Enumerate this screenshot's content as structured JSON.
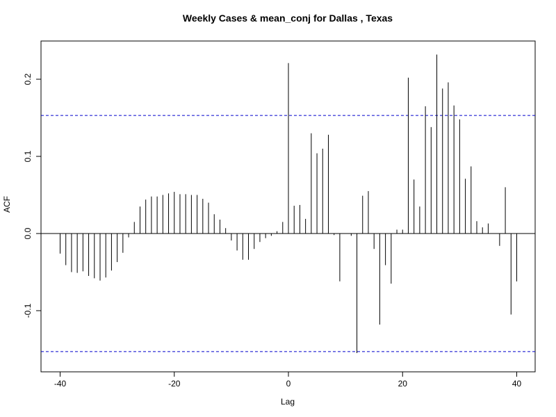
{
  "chart_data": {
    "type": "bar",
    "title": "Weekly Cases & mean_conj for Dallas , Texas",
    "xlabel": "Lag",
    "ylabel": "ACF",
    "xlim": [
      -40,
      40
    ],
    "ylim": [
      -0.155,
      0.232
    ],
    "x_ticks": [
      -40,
      -20,
      0,
      20,
      40
    ],
    "y_ticks": [
      -0.1,
      0.0,
      0.1,
      0.2
    ],
    "y_tick_labels": [
      "-0.1",
      "0.0",
      "0.1",
      "0.2"
    ],
    "confidence_limit": 0.153,
    "confidence_color": "#0000cc",
    "lags": [
      -40,
      -39,
      -38,
      -37,
      -36,
      -35,
      -34,
      -33,
      -32,
      -31,
      -30,
      -29,
      -28,
      -27,
      -26,
      -25,
      -24,
      -23,
      -22,
      -21,
      -20,
      -19,
      -18,
      -17,
      -16,
      -15,
      -14,
      -13,
      -12,
      -11,
      -10,
      -9,
      -8,
      -7,
      -6,
      -5,
      -4,
      -3,
      -2,
      -1,
      0,
      1,
      2,
      3,
      4,
      5,
      6,
      7,
      8,
      9,
      10,
      11,
      12,
      13,
      14,
      15,
      16,
      17,
      18,
      19,
      20,
      21,
      22,
      23,
      24,
      25,
      26,
      27,
      28,
      29,
      30,
      31,
      32,
      33,
      34,
      35,
      36,
      37,
      38,
      39,
      40
    ],
    "values": [
      -0.026,
      -0.041,
      -0.05,
      -0.051,
      -0.049,
      -0.055,
      -0.058,
      -0.061,
      -0.057,
      -0.048,
      -0.037,
      -0.025,
      -0.005,
      0.015,
      0.035,
      0.044,
      0.048,
      0.048,
      0.05,
      0.052,
      0.054,
      0.051,
      0.051,
      0.05,
      0.05,
      0.045,
      0.04,
      0.025,
      0.018,
      0.007,
      -0.009,
      -0.022,
      -0.034,
      -0.034,
      -0.02,
      -0.011,
      -0.006,
      -0.003,
      0.003,
      0.015,
      0.221,
      0.036,
      0.037,
      0.019,
      0.13,
      0.104,
      0.11,
      0.128,
      -0.002,
      -0.062,
      0.0,
      -0.003,
      -0.155,
      0.049,
      0.055,
      -0.02,
      -0.118,
      -0.041,
      -0.065,
      0.005,
      0.005,
      0.202,
      0.07,
      0.035,
      0.165,
      0.138,
      0.232,
      0.188,
      0.196,
      0.166,
      0.148,
      0.071,
      0.087,
      0.016,
      0.008,
      0.013,
      0.0,
      -0.016,
      0.06,
      -0.105,
      -0.062
    ]
  }
}
